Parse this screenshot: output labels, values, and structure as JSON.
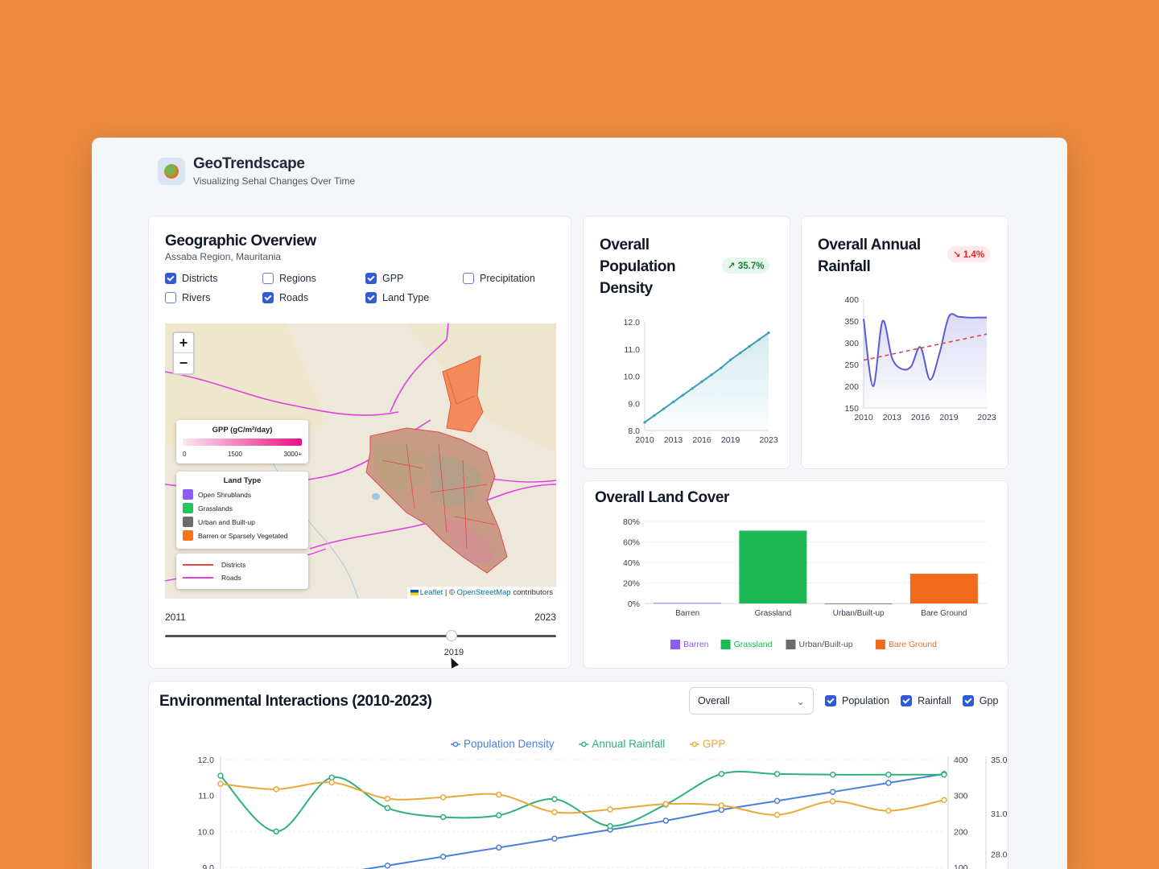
{
  "header": {
    "title": "GeoTrendscape",
    "subtitle": "Visualizing Sehal Changes Over Time"
  },
  "geo": {
    "title": "Geographic Overview",
    "location": "Assaba Region, Mauritania",
    "layers": [
      {
        "label": "Districts",
        "checked": true
      },
      {
        "label": "Regions",
        "checked": false
      },
      {
        "label": "GPP",
        "checked": true
      },
      {
        "label": "Precipitation",
        "checked": false
      },
      {
        "label": "Rivers",
        "checked": false
      },
      {
        "label": "Roads",
        "checked": true
      },
      {
        "label": "Land Type",
        "checked": true
      }
    ],
    "map": {
      "zoom_in": "+",
      "zoom_out": "−",
      "gpp_legend_title": "GPP (gC/m²/day)",
      "gpp_ticks": [
        "0",
        "1500",
        "3000+"
      ],
      "land_legend_title": "Land Type",
      "land_types": [
        {
          "label": "Open Shrublands",
          "color": "#8b5cf6"
        },
        {
          "label": "Grasslands",
          "color": "#22c55e"
        },
        {
          "label": "Urban and Built-up",
          "color": "#6b6b6b"
        },
        {
          "label": "Barren or Sparsely Vegetated",
          "color": "#f97316"
        }
      ],
      "line_legend": [
        {
          "label": "Districts",
          "color": "#ef4444"
        },
        {
          "label": "Roads",
          "color": "#e040e0"
        }
      ],
      "attribution": {
        "leaflet": "Leaflet",
        "sep": " | © ",
        "osm": "OpenStreetMap",
        "tail": " contributors"
      }
    },
    "slider": {
      "min": "2011",
      "max": "2023",
      "value": "2019",
      "min_year": 2011,
      "max_year": 2023,
      "current_year": 2019
    }
  },
  "population": {
    "title": "Overall Population Density",
    "change": "35.7%",
    "chart_data": {
      "type": "area",
      "x": [
        2010,
        2011,
        2012,
        2013,
        2014,
        2015,
        2016,
        2017,
        2018,
        2019,
        2020,
        2021,
        2022,
        2023
      ],
      "values": [
        8.3,
        8.55,
        8.8,
        9.05,
        9.3,
        9.55,
        9.8,
        10.05,
        10.3,
        10.6,
        10.85,
        11.1,
        11.35,
        11.6
      ],
      "y_ticks": [
        "12.0",
        "11.0",
        "10.0",
        "9.0",
        "8.0"
      ],
      "x_ticks": [
        "2010",
        "2013",
        "2016",
        "2019",
        "2023"
      ],
      "ylim": [
        8.0,
        12.0
      ],
      "color": "#3aa0b8"
    }
  },
  "rainfall": {
    "title": "Overall Annual Rainfall",
    "change": "1.4%",
    "chart_data": {
      "type": "line",
      "x": [
        2010,
        2011,
        2012,
        2013,
        2014,
        2015,
        2016,
        2017,
        2018,
        2019,
        2020,
        2021,
        2022,
        2023
      ],
      "values": [
        355,
        200,
        350,
        265,
        240,
        245,
        290,
        215,
        275,
        360,
        360,
        358,
        358,
        358
      ],
      "trend": [
        260,
        320
      ],
      "y_ticks": [
        "400",
        "350",
        "300",
        "250",
        "200",
        "150"
      ],
      "x_ticks": [
        "2010",
        "2013",
        "2016",
        "2019",
        "2023"
      ],
      "ylim": [
        150,
        400
      ],
      "color": "#5b5bd6",
      "trend_color": "#e0444f"
    }
  },
  "landcover": {
    "title": "Overall Land Cover",
    "chart_data": {
      "type": "bar",
      "categories": [
        "Barren",
        "Grassland",
        "Urban/Built-up",
        "Bare Ground"
      ],
      "values": [
        0.5,
        71,
        0,
        29
      ],
      "colors": [
        "#8b5cf6",
        "#1db954",
        "#6b6b6b",
        "#f26b1d"
      ],
      "y_ticks": [
        "80%",
        "60%",
        "40%",
        "20%",
        "0%"
      ],
      "ylim": [
        0,
        80
      ],
      "legend": [
        "Barren",
        "Grassland",
        "Urban/Built-up",
        "Bare Ground"
      ]
    }
  },
  "env": {
    "title": "Environmental Interactions (2010-2023)",
    "select_value": "Overall",
    "toggles": [
      {
        "label": "Population",
        "checked": true
      },
      {
        "label": "Rainfall",
        "checked": true
      },
      {
        "label": "Gpp",
        "checked": true
      }
    ],
    "chart_data": {
      "type": "line",
      "x": [
        2010,
        2011,
        2012,
        2013,
        2014,
        2015,
        2016,
        2017,
        2018,
        2019,
        2020,
        2021,
        2022,
        2023
      ],
      "series": [
        {
          "name": "Population Density",
          "color": "#4a7fdc",
          "axis": "left",
          "values": [
            8.3,
            8.55,
            8.8,
            9.05,
            9.3,
            9.55,
            9.8,
            10.05,
            10.3,
            10.6,
            10.85,
            11.1,
            11.35,
            11.6
          ]
        },
        {
          "name": "Annual Rainfall",
          "color": "#2fb07c",
          "axis": "right1",
          "values": [
            355,
            200,
            350,
            265,
            240,
            245,
            290,
            215,
            275,
            360,
            360,
            358,
            358,
            358
          ]
        },
        {
          "name": "GPP",
          "color": "#e8a93a",
          "axis": "right2",
          "values": [
            33.2,
            32.8,
            33.3,
            32.1,
            32.2,
            32.4,
            31.1,
            31.3,
            31.7,
            31.6,
            30.9,
            31.9,
            31.2,
            32.0
          ]
        }
      ],
      "left_ticks": [
        "12.0",
        "11.0",
        "10.0",
        "9.0"
      ],
      "right1_ticks": [
        "400",
        "300",
        "200",
        "100"
      ],
      "right2_ticks": [
        "35.0",
        "31.0",
        "28.0"
      ],
      "ylim_left": [
        9.0,
        12.0
      ],
      "ylim_right1": [
        100,
        400
      ],
      "ylim_right2": [
        27.0,
        35.0
      ]
    }
  }
}
